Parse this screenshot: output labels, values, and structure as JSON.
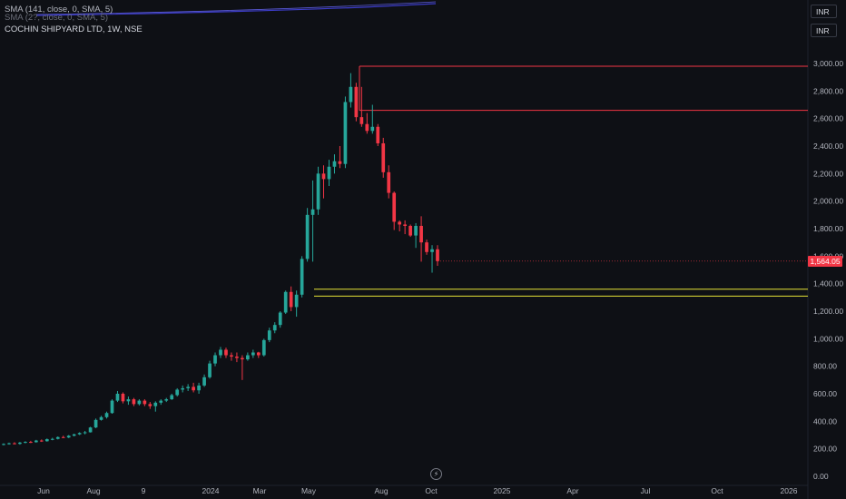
{
  "legend": {
    "indicator": "SMA (141, close, 0, SMA, 5)",
    "indicator2": "SMA (2?, close, 0, SMA, 5)"
  },
  "header": {
    "title": "COCHIN SHIPYARD LTD, 1W, NSE"
  },
  "currency_buttons": [
    "INR",
    "INR"
  ],
  "price_axis": {
    "ticks": [
      "3,000.00",
      "2,800.00",
      "2,600.00",
      "2,400.00",
      "2,200.00",
      "2,000.00",
      "1,800.00",
      "1,600.00",
      "1,400.00",
      "1,200.00",
      "1,000.00",
      "800.00",
      "600.00",
      "400.00",
      "200.00",
      "0.00"
    ],
    "last_price": "1,564.05"
  },
  "time_axis": {
    "ticks": [
      "Jun",
      "Aug",
      "9",
      "2024",
      "Mar",
      "May",
      "Aug",
      "Oct",
      "2025",
      "Apr",
      "Jul",
      "Oct",
      "2026"
    ]
  },
  "colors": {
    "up": "#26a69a",
    "down": "#f23645",
    "support": "#e5e337",
    "resistance": "#f23645",
    "sma": "#3c3cc8"
  },
  "icons": {
    "goto_realtime": "lightning-icon"
  },
  "chart_data": {
    "type": "candlestick",
    "title": "COCHIN SHIPYARD LTD, 1W, NSE",
    "ylim": [
      0,
      3000
    ],
    "lines": {
      "resistance": [
        2980,
        2660
      ],
      "support": [
        1360,
        1310
      ]
    },
    "candles": [
      [
        230,
        240,
        225,
        235
      ],
      [
        235,
        245,
        230,
        240
      ],
      [
        240,
        248,
        232,
        236
      ],
      [
        236,
        250,
        230,
        245
      ],
      [
        245,
        255,
        240,
        250
      ],
      [
        250,
        258,
        242,
        248
      ],
      [
        248,
        265,
        245,
        260
      ],
      [
        260,
        268,
        250,
        255
      ],
      [
        255,
        275,
        252,
        270
      ],
      [
        270,
        280,
        262,
        272
      ],
      [
        272,
        290,
        268,
        285
      ],
      [
        285,
        295,
        278,
        282
      ],
      [
        282,
        300,
        278,
        295
      ],
      [
        295,
        310,
        290,
        305
      ],
      [
        305,
        320,
        300,
        315
      ],
      [
        315,
        330,
        305,
        320
      ],
      [
        320,
        360,
        318,
        355
      ],
      [
        355,
        420,
        350,
        410
      ],
      [
        410,
        440,
        405,
        430
      ],
      [
        430,
        470,
        420,
        460
      ],
      [
        460,
        560,
        455,
        550
      ],
      [
        550,
        620,
        540,
        600
      ],
      [
        600,
        610,
        530,
        545
      ],
      [
        545,
        580,
        520,
        560
      ],
      [
        560,
        570,
        510,
        525
      ],
      [
        525,
        560,
        515,
        550
      ],
      [
        550,
        560,
        510,
        525
      ],
      [
        525,
        540,
        490,
        510
      ],
      [
        510,
        545,
        470,
        535
      ],
      [
        535,
        560,
        520,
        550
      ],
      [
        550,
        570,
        540,
        560
      ],
      [
        560,
        600,
        555,
        590
      ],
      [
        590,
        640,
        580,
        630
      ],
      [
        630,
        660,
        610,
        640
      ],
      [
        640,
        670,
        620,
        650
      ],
      [
        650,
        680,
        610,
        625
      ],
      [
        625,
        680,
        600,
        660
      ],
      [
        660,
        740,
        650,
        720
      ],
      [
        720,
        840,
        710,
        820
      ],
      [
        820,
        900,
        800,
        880
      ],
      [
        880,
        940,
        860,
        920
      ],
      [
        920,
        935,
        860,
        880
      ],
      [
        880,
        900,
        840,
        870
      ],
      [
        870,
        900,
        830,
        860
      ],
      [
        860,
        880,
        700,
        850
      ],
      [
        850,
        900,
        840,
        880
      ],
      [
        880,
        920,
        860,
        900
      ],
      [
        900,
        905,
        860,
        880
      ],
      [
        880,
        1000,
        870,
        990
      ],
      [
        990,
        1080,
        975,
        1060
      ],
      [
        1060,
        1120,
        1040,
        1100
      ],
      [
        1100,
        1200,
        1080,
        1190
      ],
      [
        1190,
        1350,
        1180,
        1340
      ],
      [
        1340,
        1380,
        1200,
        1230
      ],
      [
        1230,
        1350,
        1160,
        1320
      ],
      [
        1320,
        1600,
        1300,
        1580
      ],
      [
        1580,
        1950,
        1560,
        1900
      ],
      [
        1900,
        2150,
        1560,
        1940
      ],
      [
        1940,
        2250,
        1900,
        2200
      ],
      [
        2200,
        2260,
        2020,
        2160
      ],
      [
        2160,
        2300,
        2110,
        2250
      ],
      [
        2250,
        2340,
        2200,
        2290
      ],
      [
        2290,
        2400,
        2240,
        2270
      ],
      [
        2270,
        2760,
        2240,
        2720
      ],
      [
        2720,
        2930,
        2680,
        2830
      ],
      [
        2830,
        2860,
        2580,
        2610
      ],
      [
        2610,
        2830,
        2540,
        2560
      ],
      [
        2560,
        2640,
        2490,
        2510
      ],
      [
        2510,
        2700,
        2490,
        2540
      ],
      [
        2540,
        2560,
        2400,
        2420
      ],
      [
        2420,
        2460,
        2170,
        2210
      ],
      [
        2210,
        2260,
        2020,
        2060
      ],
      [
        2060,
        2070,
        1790,
        1850
      ],
      [
        1850,
        1860,
        1780,
        1830
      ],
      [
        1830,
        1860,
        1760,
        1820
      ],
      [
        1820,
        1830,
        1740,
        1750
      ],
      [
        1750,
        1840,
        1660,
        1820
      ],
      [
        1820,
        1890,
        1560,
        1700
      ],
      [
        1700,
        1720,
        1610,
        1630
      ],
      [
        1630,
        1680,
        1480,
        1650
      ],
      [
        1650,
        1680,
        1530,
        1564
      ]
    ]
  }
}
